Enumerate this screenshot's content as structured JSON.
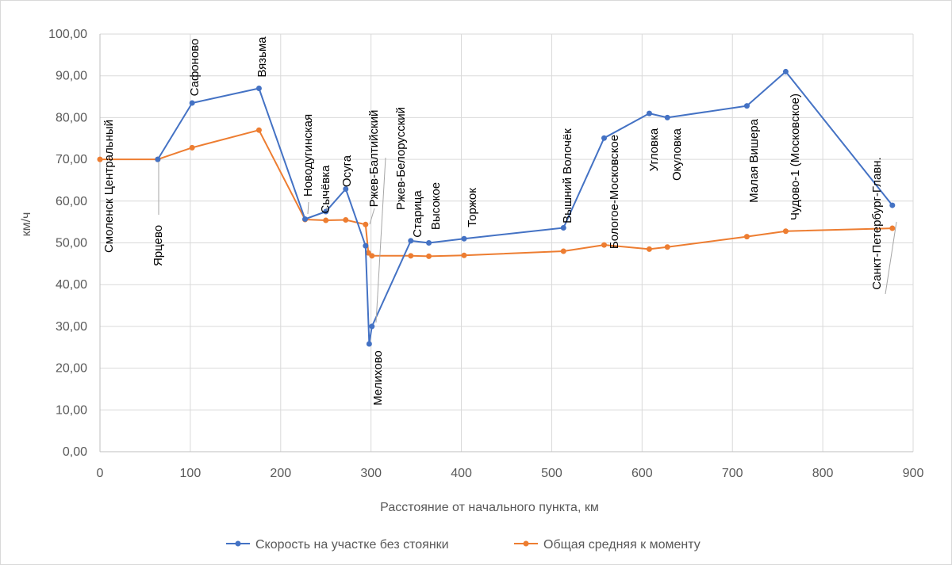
{
  "chart_data": {
    "type": "line",
    "title": "",
    "xlabel": "Расстояние от начального пункта, км",
    "ylabel": "км/ч",
    "xlim": [
      0,
      900
    ],
    "ylim": [
      0,
      100
    ],
    "x_ticks": [
      0,
      100,
      200,
      300,
      400,
      500,
      600,
      700,
      800,
      900
    ],
    "y_ticks": [
      "0,00",
      "10,00",
      "20,00",
      "30,00",
      "40,00",
      "50,00",
      "60,00",
      "70,00",
      "80,00",
      "90,00",
      "100,00"
    ],
    "grid": true,
    "legend_position": "bottom",
    "series": [
      {
        "name": "Скорость на участке без стоянки",
        "color": "#4472c4",
        "x": [
          64,
          102,
          176,
          227,
          250,
          272,
          294,
          298,
          301,
          344,
          364,
          403,
          513,
          558,
          608,
          628,
          716,
          759,
          877
        ],
        "y": [
          70,
          83.5,
          87,
          55.7,
          57.5,
          62.9,
          49.3,
          25.8,
          30,
          50.5,
          50,
          51,
          53.6,
          75.1,
          81,
          80,
          82.8,
          91,
          59
        ]
      },
      {
        "name": "Общая средняя к моменту",
        "color": "#ed7d31",
        "x": [
          0,
          64,
          102,
          176,
          227,
          250,
          272,
          294,
          297,
          301,
          344,
          364,
          403,
          513,
          558,
          608,
          628,
          716,
          759,
          877
        ],
        "y": [
          70,
          70,
          72.8,
          77,
          55.6,
          55.4,
          55.5,
          54.4,
          47.6,
          46.9,
          46.9,
          46.8,
          47,
          48,
          49.5,
          48.5,
          49,
          51.5,
          52.8,
          53.5
        ]
      }
    ],
    "annotations": [
      {
        "text": "Смоленск Центральный",
        "x": 0,
        "y": 70
      },
      {
        "text": "Ярцево",
        "x": 64,
        "y": 70
      },
      {
        "text": "Сафоново",
        "x": 102,
        "y": 83.5
      },
      {
        "text": "Вязьма",
        "x": 176,
        "y": 87
      },
      {
        "text": "Новодугинская",
        "x": 227,
        "y": 55.7
      },
      {
        "text": "Сычёвка",
        "x": 250,
        "y": 57.5
      },
      {
        "text": "Осуга",
        "x": 272,
        "y": 62.9
      },
      {
        "text": "Ржев-Балтийский",
        "x": 294,
        "y": 54.4
      },
      {
        "text": "Мелихово",
        "x": 298,
        "y": 25.8
      },
      {
        "text": "Ржев-Белорусский",
        "x": 301,
        "y": 30
      },
      {
        "text": "Старица",
        "x": 344,
        "y": 50.5
      },
      {
        "text": "Высокое",
        "x": 364,
        "y": 50
      },
      {
        "text": "Торжок",
        "x": 403,
        "y": 51
      },
      {
        "text": "Вышний Волочёк",
        "x": 513,
        "y": 53.6
      },
      {
        "text": "Бологое-Московское",
        "x": 558,
        "y": 75.1
      },
      {
        "text": "Угловка",
        "x": 608,
        "y": 81
      },
      {
        "text": "Окуловка",
        "x": 628,
        "y": 80
      },
      {
        "text": "Малая Вишера",
        "x": 716,
        "y": 82.8
      },
      {
        "text": "Чудово-1 (Московское)",
        "x": 759,
        "y": 91
      },
      {
        "text": "Санкт-Петербург-Главн.",
        "x": 877,
        "y": 59
      }
    ]
  }
}
